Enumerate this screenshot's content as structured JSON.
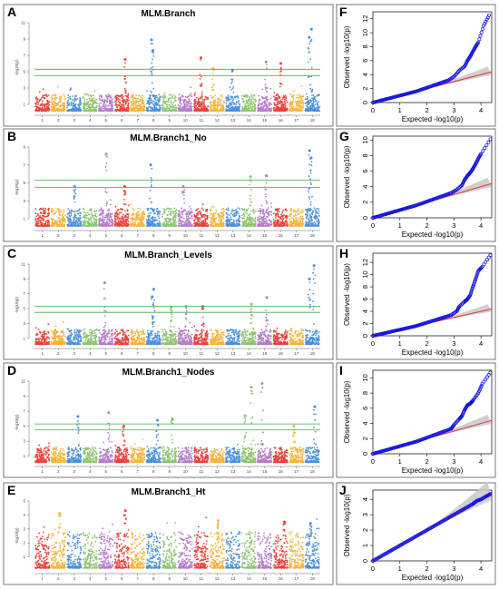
{
  "figure": {
    "panels": [
      "A",
      "B",
      "C",
      "D",
      "E",
      "F",
      "G",
      "H",
      "I",
      "J"
    ]
  },
  "chart_data": [
    {
      "id": "A",
      "type": "scatter",
      "subtype": "manhattan",
      "title": "MLM.Branch",
      "ylabel": "-log10(p)",
      "chromosomes": [
        "1",
        "2",
        "3",
        "4",
        "5",
        "6",
        "7",
        "8",
        "9",
        "10",
        "11",
        "12",
        "13",
        "14",
        "15",
        "16",
        "17",
        "18"
      ],
      "ylim": [
        0,
        11
      ],
      "yticks": [
        1,
        3,
        5,
        7,
        9,
        11
      ],
      "thresholds": [
        5.3,
        4.5
      ],
      "peaks": [
        {
          "chr": "6",
          "y": 6.5
        },
        {
          "chr": "8",
          "y": 8.9
        },
        {
          "chr": "8",
          "y": 7.6
        },
        {
          "chr": "11",
          "y": 6.7
        },
        {
          "chr": "12",
          "y": 5.4
        },
        {
          "chr": "13",
          "y": 5.2
        },
        {
          "chr": "15",
          "y": 6.2
        },
        {
          "chr": "16",
          "y": 6.0
        },
        {
          "chr": "18",
          "y": 10.2
        },
        {
          "chr": "18",
          "y": 9.2
        }
      ],
      "colors": [
        "#e8423c",
        "#f5b43a",
        "#4a90d9",
        "#8fc46e",
        "#b57cc9"
      ]
    },
    {
      "id": "B",
      "type": "scatter",
      "subtype": "manhattan",
      "title": "MLM.Branch1_No",
      "ylabel": "-log10(p)",
      "chromosomes": [
        "1",
        "2",
        "3",
        "4",
        "5",
        "6",
        "7",
        "8",
        "9",
        "10",
        "11",
        "12",
        "13",
        "14",
        "15",
        "16",
        "17",
        "18"
      ],
      "ylim": [
        0,
        9
      ],
      "yticks": [
        1,
        3,
        5,
        7,
        9
      ],
      "thresholds": [
        5.3,
        4.5
      ],
      "peaks": [
        {
          "chr": "5",
          "y": 8.2
        },
        {
          "chr": "8",
          "y": 7.0
        },
        {
          "chr": "3",
          "y": 4.6
        },
        {
          "chr": "6",
          "y": 4.6
        },
        {
          "chr": "10",
          "y": 4.6
        },
        {
          "chr": "14",
          "y": 5.7
        },
        {
          "chr": "15",
          "y": 5.8
        },
        {
          "chr": "18",
          "y": 8.6
        },
        {
          "chr": "18",
          "y": 7.8
        }
      ],
      "colors": [
        "#e8423c",
        "#f5b43a",
        "#4a90d9",
        "#8fc46e",
        "#b57cc9"
      ]
    },
    {
      "id": "C",
      "type": "scatter",
      "subtype": "manhattan",
      "title": "MLM.Branch_Levels",
      "ylabel": "-log10(p)",
      "chromosomes": [
        "1",
        "2",
        "3",
        "4",
        "5",
        "6",
        "7",
        "8",
        "9",
        "10",
        "11",
        "12",
        "13",
        "14",
        "15",
        "16",
        "17",
        "18"
      ],
      "ylim": [
        0,
        11
      ],
      "yticks": [
        1,
        3,
        5,
        7,
        9,
        11
      ],
      "thresholds": [
        5.3,
        4.5
      ],
      "peaks": [
        {
          "chr": "5",
          "y": 8.5
        },
        {
          "chr": "8",
          "y": 7.6
        },
        {
          "chr": "8",
          "y": 6.6
        },
        {
          "chr": "9",
          "y": 5.2
        },
        {
          "chr": "10",
          "y": 5.3
        },
        {
          "chr": "11",
          "y": 5.3
        },
        {
          "chr": "14",
          "y": 5.6
        },
        {
          "chr": "15",
          "y": 6.5
        },
        {
          "chr": "18",
          "y": 10.8
        },
        {
          "chr": "18",
          "y": 9.0
        }
      ],
      "colors": [
        "#e8423c",
        "#f5b43a",
        "#4a90d9",
        "#8fc46e",
        "#b57cc9"
      ]
    },
    {
      "id": "D",
      "type": "scatter",
      "subtype": "manhattan",
      "title": "MLM.Branch1_Nodes",
      "ylabel": "-log10(p)",
      "chromosomes": [
        "1",
        "2",
        "3",
        "4",
        "5",
        "6",
        "7",
        "8",
        "9",
        "10",
        "11",
        "12",
        "13",
        "14",
        "15",
        "16",
        "17",
        "18"
      ],
      "ylim": [
        0,
        11
      ],
      "yticks": [
        1,
        3,
        5,
        7,
        9,
        11
      ],
      "thresholds": [
        5.3,
        4.5
      ],
      "peaks": [
        {
          "chr": "3",
          "y": 6.3
        },
        {
          "chr": "5",
          "y": 6.8
        },
        {
          "chr": "6",
          "y": 5.0
        },
        {
          "chr": "8",
          "y": 5.8
        },
        {
          "chr": "9",
          "y": 6.0
        },
        {
          "chr": "14",
          "y": 10.2
        },
        {
          "chr": "14",
          "y": 6.4
        },
        {
          "chr": "15",
          "y": 10.7
        },
        {
          "chr": "17",
          "y": 5.0
        },
        {
          "chr": "18",
          "y": 7.6
        }
      ],
      "colors": [
        "#e8423c",
        "#f5b43a",
        "#4a90d9",
        "#8fc46e",
        "#b57cc9"
      ]
    },
    {
      "id": "E",
      "type": "scatter",
      "subtype": "manhattan",
      "title": "MLM.Branch1_Ht",
      "ylabel": "-log10(p)",
      "chromosomes": [
        "1",
        "2",
        "3",
        "4",
        "5",
        "6",
        "7",
        "8",
        "9",
        "10",
        "11",
        "12",
        "13",
        "14",
        "15",
        "16",
        "17",
        "18"
      ],
      "ylim": [
        0,
        5
      ],
      "yticks": [
        1,
        2,
        3,
        4,
        5
      ],
      "thresholds": [],
      "peaks": [
        {
          "chr": "2",
          "y": 4.1
        },
        {
          "chr": "6",
          "y": 4.3
        },
        {
          "chr": "12",
          "y": 3.6
        },
        {
          "chr": "16",
          "y": 3.5
        },
        {
          "chr": "18",
          "y": 3.4
        }
      ],
      "colors": [
        "#e8423c",
        "#f5b43a",
        "#4a90d9",
        "#8fc46e",
        "#b57cc9"
      ]
    },
    {
      "id": "F",
      "type": "scatter",
      "subtype": "qq",
      "xlabel": "Expected  -log10(p)",
      "ylabel": "Observed  -log10(p)",
      "xlim": [
        0,
        4.4
      ],
      "ylim": [
        0,
        13
      ],
      "xticks": [
        0,
        1,
        2,
        3,
        4
      ],
      "yticks": [
        0,
        2,
        4,
        6,
        8,
        10,
        12
      ],
      "diag_end": 4.4,
      "tail": [
        [
          2.8,
          3.2
        ],
        [
          3.0,
          3.7
        ],
        [
          3.2,
          4.6
        ],
        [
          3.4,
          5.2
        ],
        [
          3.5,
          6.0
        ],
        [
          3.6,
          6.6
        ],
        [
          3.7,
          7.3
        ],
        [
          3.8,
          8.0
        ],
        [
          3.9,
          8.6
        ],
        [
          4.1,
          11.0
        ],
        [
          4.3,
          12.5
        ]
      ]
    },
    {
      "id": "G",
      "type": "scatter",
      "subtype": "qq",
      "xlabel": "Expected  -log10(p)",
      "ylabel": "Observed  -log10(p)",
      "xlim": [
        0,
        4.4
      ],
      "ylim": [
        0,
        10.5
      ],
      "xticks": [
        0,
        1,
        2,
        3,
        4
      ],
      "yticks": [
        0,
        2,
        4,
        6,
        8,
        10
      ],
      "diag_end": 4.4,
      "tail": [
        [
          2.9,
          3.2
        ],
        [
          3.1,
          3.6
        ],
        [
          3.3,
          4.2
        ],
        [
          3.4,
          4.9
        ],
        [
          3.5,
          5.4
        ],
        [
          3.6,
          5.8
        ],
        [
          3.7,
          6.3
        ],
        [
          3.8,
          6.9
        ],
        [
          3.9,
          7.6
        ],
        [
          4.0,
          8.2
        ],
        [
          4.35,
          10.1
        ]
      ]
    },
    {
      "id": "H",
      "type": "scatter",
      "subtype": "qq",
      "xlabel": "Expected  -log10(p)",
      "ylabel": "Observed  -log10(p)",
      "xlim": [
        0,
        4.4
      ],
      "ylim": [
        0,
        13.5
      ],
      "xticks": [
        0,
        1,
        2,
        3,
        4
      ],
      "yticks": [
        0,
        2,
        4,
        6,
        8,
        10,
        12
      ],
      "diag_end": 4.4,
      "tail": [
        [
          2.9,
          3.4
        ],
        [
          3.1,
          4.0
        ],
        [
          3.2,
          4.8
        ],
        [
          3.4,
          5.6
        ],
        [
          3.5,
          6.0
        ],
        [
          3.6,
          6.6
        ],
        [
          3.7,
          8.0
        ],
        [
          3.8,
          9.2
        ],
        [
          3.9,
          10.6
        ],
        [
          4.05,
          11.3
        ],
        [
          4.35,
          13.2
        ]
      ]
    },
    {
      "id": "I",
      "type": "scatter",
      "subtype": "qq",
      "xlabel": "Expected  -log10(p)",
      "ylabel": "Observed  -log10(p)",
      "xlim": [
        0,
        4.4
      ],
      "ylim": [
        0,
        11
      ],
      "xticks": [
        0,
        1,
        2,
        3,
        4
      ],
      "yticks": [
        0,
        2,
        4,
        6,
        8,
        10
      ],
      "diag_end": 4.4,
      "tail": [
        [
          2.9,
          3.3
        ],
        [
          3.0,
          3.8
        ],
        [
          3.2,
          4.6
        ],
        [
          3.3,
          5.0
        ],
        [
          3.4,
          5.8
        ],
        [
          3.5,
          6.4
        ],
        [
          3.6,
          6.6
        ],
        [
          3.7,
          7.0
        ],
        [
          3.9,
          8.0
        ],
        [
          4.05,
          9.2
        ],
        [
          4.35,
          10.7
        ]
      ]
    },
    {
      "id": "J",
      "type": "scatter",
      "subtype": "qq",
      "xlabel": "Expected  -log10(p)",
      "ylabel": "Observed  -log10(p)",
      "xlim": [
        0,
        4.4
      ],
      "ylim": [
        0,
        4.6
      ],
      "xticks": [
        0,
        1,
        2,
        3,
        4
      ],
      "yticks": [
        0,
        1,
        2,
        3,
        4
      ],
      "diag_end": 4.4,
      "tail": [
        [
          3.3,
          3.3
        ],
        [
          3.5,
          3.5
        ],
        [
          3.7,
          3.7
        ],
        [
          3.85,
          3.9
        ],
        [
          4.0,
          4.0
        ],
        [
          4.2,
          4.2
        ],
        [
          4.35,
          4.35
        ]
      ]
    }
  ]
}
